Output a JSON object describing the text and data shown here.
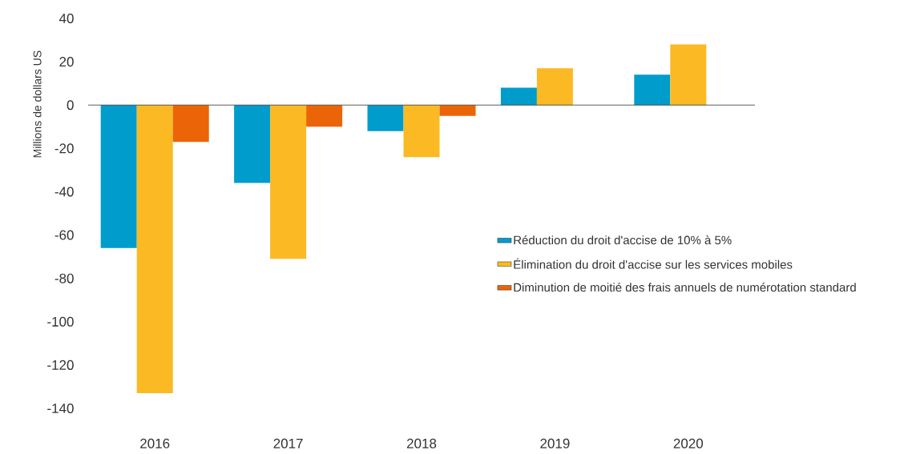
{
  "chart_data": {
    "type": "bar",
    "ylabel": "Millions de dollars US",
    "categories": [
      "2016",
      "2017",
      "2018",
      "2019",
      "2020"
    ],
    "series": [
      {
        "name": "Réduction du droit d'accise de 10% à 5%",
        "color": "#009ccc",
        "values": [
          -66,
          -36,
          -12,
          8,
          14
        ]
      },
      {
        "name": "Élimination du droit d'accise sur les services mobiles",
        "color": "#fbb923",
        "values": [
          -133,
          -71,
          -24,
          17,
          28
        ]
      },
      {
        "name": "Diminution de moitié des frais annuels de numérotation standard",
        "color": "#ec6408",
        "values": [
          -17,
          -10,
          -5,
          0,
          0
        ]
      }
    ],
    "ylim": [
      -140,
      40
    ],
    "yticks": [
      -140,
      -120,
      -100,
      -80,
      -60,
      -40,
      -20,
      0,
      20,
      40
    ],
    "legend": "right"
  }
}
